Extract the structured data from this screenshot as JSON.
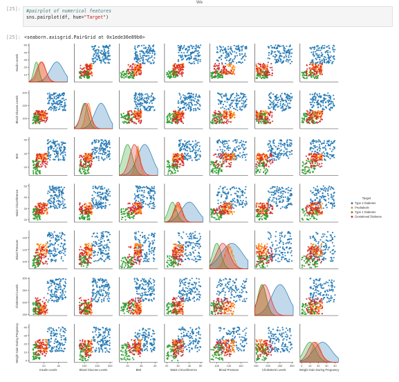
{
  "window": {
    "title_fragment": "We"
  },
  "input_cell": {
    "prompt": "[25]:",
    "comment": "#pairplot of numerical features",
    "code_fn": "sns.pairplot(df, hue=",
    "code_str": "\"Target\"",
    "code_end": ")"
  },
  "output_cell": {
    "prompt": "[25]:",
    "text": "<seaborn.axisgrid.PairGrid at 0x1ede36e89b0>"
  },
  "chart_data": {
    "type": "scatter",
    "title": "",
    "variables": [
      "Insulin Levels",
      "Blood Glucose Levels",
      "BMI",
      "Waist Circumference",
      "Blood Pressure",
      "Cholesterol Levels",
      "Weight Gain During Pregnancy"
    ],
    "ranges": [
      [
        0,
        52
      ],
      [
        60,
        210
      ],
      [
        14,
        42
      ],
      [
        18,
        52
      ],
      [
        88,
        152
      ],
      [
        145,
        305
      ],
      [
        -2,
        44
      ]
    ],
    "ticks": [
      [
        10,
        20,
        30,
        40,
        50
      ],
      [
        100,
        150,
        200
      ],
      [
        20,
        30,
        40
      ],
      [
        20,
        30,
        40,
        50
      ],
      [
        100,
        120,
        140
      ],
      [
        150,
        200,
        250,
        300
      ],
      [
        0,
        10,
        20,
        30,
        40
      ]
    ],
    "xtick_labels": [
      [
        "20",
        "40"
      ],
      [
        "100",
        "150",
        "200"
      ],
      [
        "20",
        "30",
        "40"
      ],
      [
        "20",
        "30",
        "40",
        "50"
      ],
      [
        "100",
        "120",
        "140"
      ],
      [
        "150",
        "200",
        "250",
        "300"
      ],
      [
        "0",
        "10",
        "20",
        "30",
        "40"
      ]
    ],
    "legend": {
      "title": "Target",
      "placement": "center-right",
      "entries": [
        "Type 2 Diabetes",
        "Prediabetic",
        "Type 1 Diabetes",
        "Gestational Diabetes"
      ]
    },
    "colors": [
      "#1f77b4",
      "#ff7f0e",
      "#2ca02c",
      "#d62728"
    ],
    "series": [
      {
        "name": "Type 2 Diabetes",
        "ranges": [
          [
            25,
            50
          ],
          [
            130,
            200
          ],
          [
            25,
            40
          ],
          [
            30,
            50
          ],
          [
            100,
            150
          ],
          [
            200,
            300
          ],
          [
            10,
            40
          ]
        ]
      },
      {
        "name": "Prediabetic",
        "ranges": [
          [
            10,
            25
          ],
          [
            100,
            130
          ],
          [
            25,
            30
          ],
          [
            25,
            35
          ],
          [
            110,
            130
          ],
          [
            150,
            200
          ],
          [
            10,
            25
          ]
        ]
      },
      {
        "name": "Type 1 Diabetes",
        "ranges": [
          [
            5,
            15
          ],
          [
            80,
            120
          ],
          [
            15,
            25
          ],
          [
            20,
            30
          ],
          [
            90,
            110
          ],
          [
            150,
            200
          ],
          [
            0,
            20
          ]
        ]
      },
      {
        "name": "Gestational Diabetes",
        "ranges": [
          [
            8,
            25
          ],
          [
            80,
            130
          ],
          [
            20,
            30
          ],
          [
            25,
            35
          ],
          [
            95,
            125
          ],
          [
            150,
            220
          ],
          [
            5,
            25
          ]
        ]
      }
    ]
  }
}
